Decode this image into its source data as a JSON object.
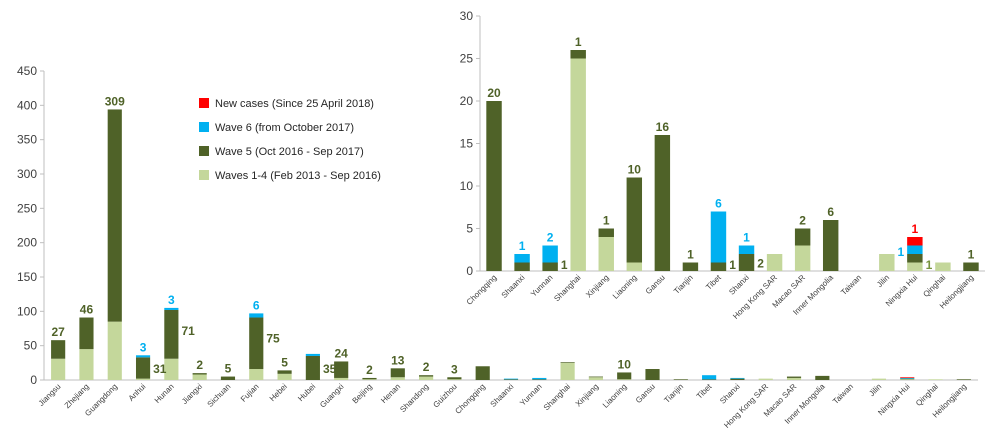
{
  "colors": {
    "new": "#ff0000",
    "w6": "#00b0f0",
    "w5": "#4f6228",
    "w14": "#c4d79b"
  },
  "legend": [
    {
      "key": "new",
      "label": "New cases (Since 25 April 2018)"
    },
    {
      "key": "w6",
      "label": "Wave 6 (from October 2017)"
    },
    {
      "key": "w5",
      "label": "Wave 5 (Oct 2016 - Sep 2017)"
    },
    {
      "key": "w14",
      "label": "Waves 1-4 (Feb 2013 - Sep 2016)"
    }
  ],
  "chart_data": [
    {
      "type": "bar",
      "stacked": true,
      "legend_position": "top-center",
      "ylim": [
        0,
        450
      ],
      "yticks": [
        0,
        50,
        100,
        150,
        200,
        250,
        300,
        350,
        400,
        450
      ],
      "categories": [
        "Jiangsu",
        "Zhejiang",
        "Guangdong",
        "Anhui",
        "Hunan",
        "Jiangxi",
        "Sichuan",
        "Fujian",
        "Hebei",
        "Hubei",
        "Guangxi",
        "Beijing",
        "Henan",
        "Shandong",
        "Guizhou",
        "Chongqing",
        "Shaanxi",
        "Yunnan",
        "Shanghai",
        "Xinjiang",
        "Liaoning",
        "Gansu",
        "Tianjin",
        "Tibet",
        "Shanxi",
        "Hong Kong SAR",
        "Macao SAR",
        "Inner Mongolia",
        "Taiwan",
        "Jilin",
        "Ningxia Hui",
        "Qinghai",
        "Heilongjiang"
      ],
      "series": [
        {
          "key": "w14",
          "name": "Waves 1-4 (Feb 2013 - Sep 2016)",
          "values": [
            31,
            45,
            85,
            2,
            31,
            8,
            0,
            16,
            9,
            0,
            3,
            1,
            4,
            5,
            1,
            0,
            0,
            0,
            25,
            4,
            1,
            0,
            0,
            0,
            0,
            2,
            3,
            0,
            0,
            2,
            1,
            1,
            0
          ]
        },
        {
          "key": "w5",
          "name": "Wave 5 (Oct 2016 - Sep 2017)",
          "values": [
            27,
            46,
            309,
            31,
            71,
            2,
            5,
            75,
            5,
            35,
            24,
            2,
            13,
            2,
            3,
            20,
            1,
            1,
            1,
            1,
            10,
            16,
            1,
            1,
            2,
            0,
            2,
            6,
            0,
            0,
            1,
            0,
            1
          ]
        },
        {
          "key": "w6",
          "name": "Wave 6 (from October 2017)",
          "values": [
            0,
            0,
            0,
            3,
            3,
            0,
            0,
            6,
            0,
            3,
            0,
            0,
            0,
            0,
            0,
            0,
            1,
            2,
            0,
            0,
            0,
            0,
            0,
            6,
            1,
            0,
            0,
            0,
            0,
            0,
            1,
            0,
            0
          ]
        },
        {
          "key": "new",
          "name": "New cases (Since 25 April 2018)",
          "values": [
            0,
            0,
            0,
            0,
            0,
            0,
            0,
            0,
            0,
            0,
            0,
            0,
            0,
            0,
            0,
            0,
            0,
            0,
            0,
            0,
            0,
            0,
            0,
            0,
            0,
            0,
            0,
            0,
            0,
            0,
            1,
            0,
            0
          ]
        }
      ],
      "annotations": [
        {
          "category": "Jiangsu",
          "text": "27",
          "series": "w5",
          "placement": "top"
        },
        {
          "category": "Zhejiang",
          "text": "46",
          "series": "w5",
          "placement": "top"
        },
        {
          "category": "Guangdong",
          "text": "309",
          "series": "w5",
          "placement": "top"
        },
        {
          "category": "Anhui",
          "text": "3",
          "series": "w6",
          "placement": "top"
        },
        {
          "category": "Anhui",
          "text": "31",
          "series": "w5",
          "placement": "right"
        },
        {
          "category": "Hunan",
          "text": "3",
          "series": "w6",
          "placement": "top"
        },
        {
          "category": "Hunan",
          "text": "71",
          "series": "w5",
          "placement": "right"
        },
        {
          "category": "Jiangxi",
          "text": "2",
          "series": "w5",
          "placement": "top"
        },
        {
          "category": "Sichuan",
          "text": "5",
          "series": "w5",
          "placement": "top"
        },
        {
          "category": "Fujian",
          "text": "6",
          "series": "w6",
          "placement": "top"
        },
        {
          "category": "Fujian",
          "text": "75",
          "series": "w5",
          "placement": "right"
        },
        {
          "category": "Hebei",
          "text": "5",
          "series": "w5",
          "placement": "top"
        },
        {
          "category": "Hubei",
          "text": "35",
          "series": "w5",
          "placement": "right"
        },
        {
          "category": "Guangxi",
          "text": "24",
          "series": "w5",
          "placement": "top"
        },
        {
          "category": "Beijing",
          "text": "2",
          "series": "w5",
          "placement": "top"
        },
        {
          "category": "Henan",
          "text": "13",
          "series": "w5",
          "placement": "top"
        },
        {
          "category": "Shandong",
          "text": "2",
          "series": "w5",
          "placement": "top"
        },
        {
          "category": "Guizhou",
          "text": "3",
          "series": "w5",
          "placement": "top"
        },
        {
          "category": "Liaoning",
          "text": "10",
          "series": "w5",
          "placement": "top"
        }
      ]
    },
    {
      "type": "bar",
      "stacked": true,
      "inset": true,
      "ylim": [
        0,
        30
      ],
      "yticks": [
        0,
        5,
        10,
        15,
        20,
        25,
        30
      ],
      "categories": [
        "Chongqing",
        "Shaanxi",
        "Yunnan",
        "Shanghai",
        "Xinjiang",
        "Liaoning",
        "Gansu",
        "Tianjin",
        "Tibet",
        "Shanxi",
        "Hong Kong SAR",
        "Macao SAR",
        "Inner Mongolia",
        "Taiwan",
        "Jilin",
        "Ningxia Hui",
        "Qinghai",
        "Heilongjiang"
      ],
      "series": [
        {
          "key": "w14",
          "name": "Waves 1-4 (Feb 2013 - Sep 2016)",
          "values": [
            0,
            0,
            0,
            25,
            4,
            1,
            0,
            0,
            0,
            0,
            2,
            3,
            0,
            0,
            2,
            1,
            1,
            0
          ]
        },
        {
          "key": "w5",
          "name": "Wave 5 (Oct 2016 - Sep 2017)",
          "values": [
            20,
            1,
            1,
            1,
            1,
            10,
            16,
            1,
            1,
            2,
            0,
            2,
            6,
            0,
            0,
            1,
            0,
            1
          ]
        },
        {
          "key": "w6",
          "name": "Wave 6 (from October 2017)",
          "values": [
            0,
            1,
            2,
            0,
            0,
            0,
            0,
            0,
            6,
            1,
            0,
            0,
            0,
            0,
            0,
            1,
            0,
            0
          ]
        },
        {
          "key": "new",
          "name": "New cases (Since 25 April 2018)",
          "values": [
            0,
            0,
            0,
            0,
            0,
            0,
            0,
            0,
            0,
            0,
            0,
            0,
            0,
            0,
            0,
            1,
            0,
            0
          ]
        }
      ],
      "annotations": [
        {
          "category": "Chongqing",
          "text": "20",
          "series": "w5",
          "placement": "top"
        },
        {
          "category": "Shaanxi",
          "text": "1",
          "series": "w6",
          "placement": "top"
        },
        {
          "category": "Yunnan",
          "text": "2",
          "series": "w6",
          "placement": "top"
        },
        {
          "category": "Yunnan",
          "text": "1",
          "series": "w5",
          "placement": "right"
        },
        {
          "category": "Shanghai",
          "text": "1",
          "series": "w5",
          "placement": "top"
        },
        {
          "category": "Xinjiang",
          "text": "1",
          "series": "w5",
          "placement": "top"
        },
        {
          "category": "Liaoning",
          "text": "10",
          "series": "w5",
          "placement": "top"
        },
        {
          "category": "Gansu",
          "text": "16",
          "series": "w5",
          "placement": "top"
        },
        {
          "category": "Tianjin",
          "text": "1",
          "series": "w5",
          "placement": "top"
        },
        {
          "category": "Tibet",
          "text": "6",
          "series": "w6",
          "placement": "top"
        },
        {
          "category": "Tibet",
          "text": "1",
          "series": "w5",
          "placement": "right"
        },
        {
          "category": "Shanxi",
          "text": "1",
          "series": "w6",
          "placement": "top"
        },
        {
          "category": "Shanxi",
          "text": "2",
          "series": "w5",
          "placement": "right"
        },
        {
          "category": "Macao SAR",
          "text": "2",
          "series": "w5",
          "placement": "top"
        },
        {
          "category": "Inner Mongolia",
          "text": "6",
          "series": "w5",
          "placement": "top"
        },
        {
          "category": "Ningxia Hui",
          "text": "1",
          "series": "new",
          "placement": "top"
        },
        {
          "category": "Ningxia Hui",
          "text": "1",
          "series": "w6",
          "placement": "left"
        },
        {
          "category": "Ningxia Hui",
          "text": "1",
          "series": "w14",
          "placement": "right"
        },
        {
          "category": "Heilongjiang",
          "text": "1",
          "series": "w5",
          "placement": "top"
        }
      ]
    }
  ]
}
